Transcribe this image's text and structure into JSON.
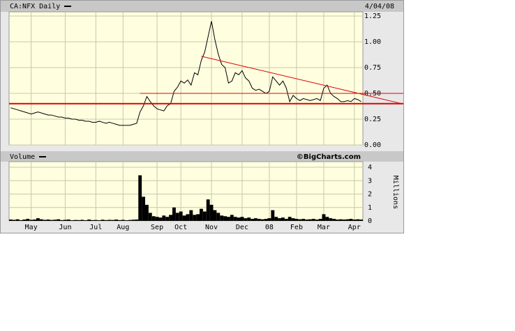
{
  "chart_data": [
    {
      "type": "line",
      "title": "CA:NFX Daily",
      "date": "4/04/08",
      "color": "#000000",
      "values": [
        0.36,
        0.35,
        0.34,
        0.33,
        0.32,
        0.31,
        0.3,
        0.31,
        0.32,
        0.31,
        0.3,
        0.29,
        0.29,
        0.28,
        0.27,
        0.27,
        0.26,
        0.26,
        0.25,
        0.25,
        0.24,
        0.24,
        0.23,
        0.23,
        0.22,
        0.22,
        0.23,
        0.22,
        0.21,
        0.22,
        0.21,
        0.2,
        0.19,
        0.19,
        0.19,
        0.19,
        0.2,
        0.21,
        0.32,
        0.38,
        0.47,
        0.42,
        0.38,
        0.35,
        0.34,
        0.33,
        0.38,
        0.4,
        0.52,
        0.56,
        0.62,
        0.6,
        0.63,
        0.58,
        0.7,
        0.68,
        0.82,
        0.9,
        1.05,
        1.2,
        1.02,
        0.88,
        0.78,
        0.75,
        0.6,
        0.62,
        0.7,
        0.68,
        0.72,
        0.65,
        0.62,
        0.55,
        0.53,
        0.54,
        0.52,
        0.5,
        0.52,
        0.66,
        0.62,
        0.58,
        0.62,
        0.55,
        0.42,
        0.48,
        0.45,
        0.43,
        0.45,
        0.44,
        0.43,
        0.44,
        0.45,
        0.43,
        0.55,
        0.58,
        0.5,
        0.47,
        0.45,
        0.42,
        0.42,
        0.43,
        0.42,
        0.45,
        0.44,
        0.42
      ],
      "ylim": [
        0,
        1.25
      ],
      "yticks": [
        {
          "value": 0,
          "label": "0.00"
        },
        0.25,
        {
          "value": 0.5,
          "label": "0.50"
        },
        0.75,
        {
          "value": 1,
          "label": "1.00"
        },
        1.25
      ],
      "grid": true,
      "hlines": [
        {
          "value": 0.4,
          "color": "#e00000",
          "width": 2
        },
        {
          "value": 0.5,
          "color": "#e00000",
          "width": 1,
          "start": 38
        }
      ],
      "trendline": {
        "color": "#e00000",
        "points": [
          [
            56,
            0.86
          ],
          [
            115,
            0.4
          ]
        ]
      }
    },
    {
      "type": "bar",
      "title": "Volume",
      "credit": "©BigCharts.com",
      "ylabel": "Millions",
      "color": "#000000",
      "categories": [
        null,
        null,
        null,
        null,
        null,
        null,
        "May",
        null,
        null,
        null,
        null,
        null,
        null,
        null,
        null,
        null,
        "Jun",
        null,
        null,
        null,
        null,
        null,
        null,
        null,
        null,
        "Jul",
        null,
        null,
        null,
        null,
        null,
        null,
        null,
        "Aug",
        null,
        null,
        null,
        null,
        null,
        null,
        null,
        null,
        null,
        "Sep",
        null,
        null,
        null,
        null,
        null,
        null,
        "Oct",
        null,
        null,
        null,
        null,
        null,
        null,
        null,
        null,
        "Nov",
        null,
        null,
        null,
        null,
        null,
        null,
        null,
        null,
        "Dec",
        null,
        null,
        null,
        null,
        null,
        null,
        null,
        "08",
        null,
        null,
        null,
        null,
        null,
        null,
        null,
        "Feb",
        null,
        null,
        null,
        null,
        null,
        null,
        null,
        "Mar",
        null,
        null,
        null,
        null,
        null,
        null,
        null,
        null,
        "Apr",
        null,
        null
      ],
      "values": [
        0.1,
        0.08,
        0.12,
        0.06,
        0.1,
        0.15,
        0.08,
        0.1,
        0.2,
        0.12,
        0.08,
        0.1,
        0.07,
        0.09,
        0.12,
        0.06,
        0.08,
        0.1,
        0.05,
        0.07,
        0.06,
        0.08,
        0.05,
        0.1,
        0.06,
        0.07,
        0.05,
        0.09,
        0.06,
        0.08,
        0.07,
        0.1,
        0.06,
        0.08,
        0.05,
        0.07,
        0.09,
        0.1,
        3.4,
        1.8,
        1.2,
        0.6,
        0.35,
        0.3,
        0.25,
        0.4,
        0.3,
        0.45,
        1.0,
        0.6,
        0.7,
        0.4,
        0.5,
        0.8,
        0.45,
        0.5,
        0.9,
        0.7,
        1.6,
        1.2,
        0.8,
        0.6,
        0.4,
        0.35,
        0.3,
        0.45,
        0.3,
        0.25,
        0.3,
        0.2,
        0.25,
        0.15,
        0.2,
        0.15,
        0.12,
        0.15,
        0.2,
        0.8,
        0.3,
        0.2,
        0.25,
        0.15,
        0.3,
        0.2,
        0.15,
        0.12,
        0.15,
        0.1,
        0.12,
        0.15,
        0.1,
        0.15,
        0.5,
        0.3,
        0.2,
        0.15,
        0.1,
        0.12,
        0.1,
        0.12,
        0.15,
        0.1,
        0.12,
        0.1
      ],
      "ylim": [
        0,
        4
      ],
      "yticks": [
        0,
        1,
        2,
        3,
        4
      ],
      "grid": true
    }
  ]
}
